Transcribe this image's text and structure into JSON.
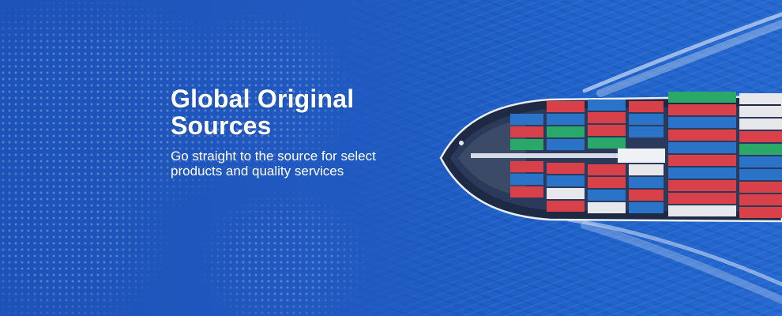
{
  "hero": {
    "title": "Global Original Sources",
    "subtitle": "Go straight to the source for select products and quality services"
  },
  "colors": {
    "background": "#1f5cc4",
    "text": "#ffffff",
    "container_red": "#d8404a",
    "container_blue": "#2b73c8",
    "container_green": "#2aa86a",
    "container_white": "#e6e8ec"
  },
  "images": {
    "background": "world-map-dots",
    "ship": "cargo-ship"
  }
}
